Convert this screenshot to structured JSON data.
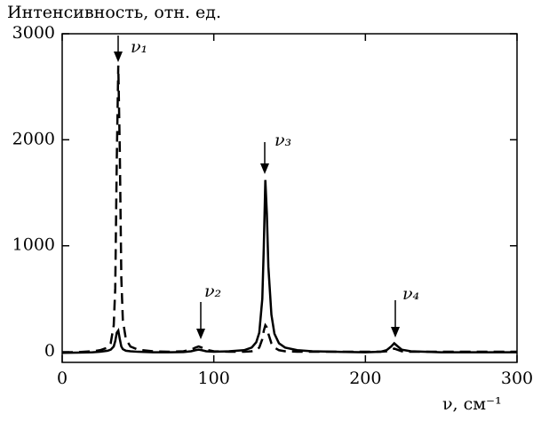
{
  "chart_data": {
    "type": "line",
    "y_label": "Интенсивность, отн. ед.",
    "x_label": "ν, см⁻¹",
    "annotations": [
      "ν₁",
      "ν₂",
      "ν₃",
      "ν₄"
    ],
    "x": [
      0,
      10,
      20,
      25,
      30,
      32,
      34,
      35,
      36,
      37,
      38,
      39,
      40,
      42,
      45,
      50,
      60,
      70,
      80,
      85,
      88,
      90,
      92,
      95,
      100,
      110,
      120,
      125,
      128,
      130,
      132,
      133,
      134,
      135,
      136,
      138,
      140,
      143,
      147,
      155,
      165,
      180,
      200,
      210,
      214,
      217,
      219,
      221,
      224,
      230,
      250,
      270,
      300
    ],
    "series": [
      {
        "color": "#000000",
        "dash": false,
        "values": [
          -10,
          -8,
          -5,
          0,
          10,
          20,
          50,
          100,
          180,
          200,
          120,
          50,
          25,
          10,
          5,
          0,
          -5,
          -5,
          -3,
          5,
          15,
          20,
          15,
          5,
          0,
          5,
          15,
          40,
          90,
          180,
          500,
          1000,
          1620,
          1300,
          800,
          350,
          170,
          80,
          40,
          15,
          5,
          0,
          -5,
          0,
          15,
          50,
          80,
          55,
          20,
          5,
          -5,
          -5,
          -5
        ]
      },
      {
        "color": "#000000",
        "dash": true,
        "values": [
          -5,
          -3,
          5,
          15,
          40,
          80,
          250,
          600,
          1800,
          2700,
          1900,
          700,
          300,
          120,
          50,
          20,
          5,
          0,
          5,
          20,
          40,
          50,
          40,
          20,
          5,
          0,
          0,
          5,
          15,
          40,
          120,
          200,
          250,
          230,
          170,
          80,
          40,
          15,
          5,
          0,
          0,
          0,
          0,
          0,
          5,
          20,
          30,
          20,
          5,
          0,
          0,
          0,
          0
        ]
      }
    ],
    "xlim": [
      0,
      300
    ],
    "ylim": [
      -100,
      3000
    ],
    "xticks": [
      0,
      100,
      200,
      300
    ],
    "yticks": [
      0,
      1000,
      2000,
      3000
    ]
  }
}
